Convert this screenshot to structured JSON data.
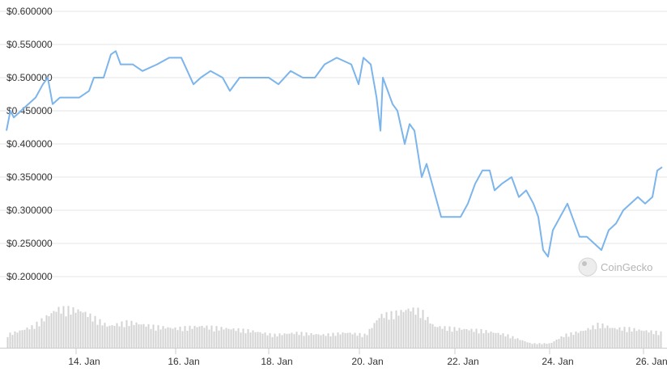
{
  "chart_data": {
    "type": "line",
    "title": "",
    "xlabel": "",
    "ylabel": "",
    "ylim": [
      0.2,
      0.6
    ],
    "y_ticks": [
      "$0.600000",
      "$0.550000",
      "$0.500000",
      "$0.450000",
      "$0.400000",
      "$0.350000",
      "$0.300000",
      "$0.250000",
      "$0.200000"
    ],
    "x_ticks": [
      "14. Jan",
      "16. Jan",
      "18. Jan",
      "20. Jan",
      "22. Jan",
      "24. Jan",
      "26. Jan"
    ],
    "grid": true,
    "watermark": "CoinGecko",
    "colors": {
      "line": "#7cb5ec",
      "volume": "#d3d3d3",
      "grid": "#e6e6e6",
      "text": "#333333"
    },
    "series": [
      {
        "values": [
          [
            0.0,
            0.42
          ],
          [
            0.08,
            0.45
          ],
          [
            0.15,
            0.44
          ],
          [
            0.3,
            0.45
          ],
          [
            0.45,
            0.46
          ],
          [
            0.6,
            0.47
          ],
          [
            0.75,
            0.49
          ],
          [
            0.85,
            0.5
          ],
          [
            0.95,
            0.46
          ],
          [
            1.1,
            0.47
          ],
          [
            1.3,
            0.47
          ],
          [
            1.5,
            0.47
          ],
          [
            1.7,
            0.48
          ],
          [
            1.8,
            0.5
          ],
          [
            2.0,
            0.5
          ],
          [
            2.15,
            0.535
          ],
          [
            2.25,
            0.54
          ],
          [
            2.35,
            0.52
          ],
          [
            2.6,
            0.52
          ],
          [
            2.8,
            0.51
          ],
          [
            3.1,
            0.52
          ],
          [
            3.35,
            0.53
          ],
          [
            3.6,
            0.53
          ],
          [
            3.85,
            0.49
          ],
          [
            4.0,
            0.5
          ],
          [
            4.2,
            0.51
          ],
          [
            4.45,
            0.5
          ],
          [
            4.6,
            0.48
          ],
          [
            4.8,
            0.5
          ],
          [
            5.1,
            0.5
          ],
          [
            5.4,
            0.5
          ],
          [
            5.6,
            0.49
          ],
          [
            5.85,
            0.51
          ],
          [
            6.1,
            0.5
          ],
          [
            6.35,
            0.5
          ],
          [
            6.55,
            0.52
          ],
          [
            6.8,
            0.53
          ],
          [
            7.1,
            0.52
          ],
          [
            7.25,
            0.49
          ],
          [
            7.35,
            0.53
          ],
          [
            7.5,
            0.52
          ],
          [
            7.62,
            0.47
          ],
          [
            7.7,
            0.42
          ],
          [
            7.75,
            0.5
          ],
          [
            7.85,
            0.48
          ],
          [
            7.95,
            0.46
          ],
          [
            8.05,
            0.45
          ],
          [
            8.2,
            0.4
          ],
          [
            8.3,
            0.43
          ],
          [
            8.4,
            0.42
          ],
          [
            8.55,
            0.35
          ],
          [
            8.65,
            0.37
          ],
          [
            8.8,
            0.33
          ],
          [
            8.95,
            0.29
          ],
          [
            9.05,
            0.29
          ],
          [
            9.2,
            0.29
          ],
          [
            9.35,
            0.29
          ],
          [
            9.5,
            0.31
          ],
          [
            9.65,
            0.34
          ],
          [
            9.8,
            0.36
          ],
          [
            9.95,
            0.36
          ],
          [
            10.05,
            0.33
          ],
          [
            10.2,
            0.34
          ],
          [
            10.4,
            0.35
          ],
          [
            10.55,
            0.32
          ],
          [
            10.7,
            0.33
          ],
          [
            10.85,
            0.31
          ],
          [
            10.95,
            0.29
          ],
          [
            11.05,
            0.24
          ],
          [
            11.15,
            0.23
          ],
          [
            11.25,
            0.27
          ],
          [
            11.4,
            0.29
          ],
          [
            11.55,
            0.31
          ],
          [
            11.65,
            0.29
          ],
          [
            11.8,
            0.26
          ],
          [
            11.95,
            0.26
          ],
          [
            12.1,
            0.25
          ],
          [
            12.25,
            0.24
          ],
          [
            12.4,
            0.27
          ],
          [
            12.55,
            0.28
          ],
          [
            12.7,
            0.3
          ],
          [
            12.85,
            0.31
          ],
          [
            13.0,
            0.32
          ],
          [
            13.15,
            0.31
          ],
          [
            13.3,
            0.32
          ],
          [
            13.4,
            0.36
          ],
          [
            13.5,
            0.365
          ]
        ]
      },
      {
        "name": "volume",
        "values": [
          [
            0.0,
            0.06
          ],
          [
            0.3,
            0.08
          ],
          [
            0.55,
            0.1
          ],
          [
            0.8,
            0.14
          ],
          [
            1.05,
            0.18
          ],
          [
            1.3,
            0.18
          ],
          [
            1.55,
            0.17
          ],
          [
            1.8,
            0.14
          ],
          [
            2.1,
            0.1
          ],
          [
            2.5,
            0.12
          ],
          [
            3.0,
            0.1
          ],
          [
            3.5,
            0.09
          ],
          [
            4.0,
            0.1
          ],
          [
            4.5,
            0.09
          ],
          [
            5.0,
            0.08
          ],
          [
            5.5,
            0.06
          ],
          [
            6.0,
            0.07
          ],
          [
            6.5,
            0.06
          ],
          [
            7.0,
            0.07
          ],
          [
            7.4,
            0.06
          ],
          [
            7.7,
            0.15
          ],
          [
            8.0,
            0.16
          ],
          [
            8.3,
            0.18
          ],
          [
            8.55,
            0.17
          ],
          [
            8.8,
            0.1
          ],
          [
            9.2,
            0.09
          ],
          [
            9.8,
            0.08
          ],
          [
            10.3,
            0.06
          ],
          [
            10.8,
            0.02
          ],
          [
            11.2,
            0.02
          ],
          [
            11.5,
            0.06
          ],
          [
            11.9,
            0.08
          ],
          [
            12.2,
            0.11
          ],
          [
            12.5,
            0.09
          ],
          [
            12.8,
            0.09
          ],
          [
            13.1,
            0.08
          ],
          [
            13.5,
            0.07
          ]
        ]
      }
    ]
  }
}
